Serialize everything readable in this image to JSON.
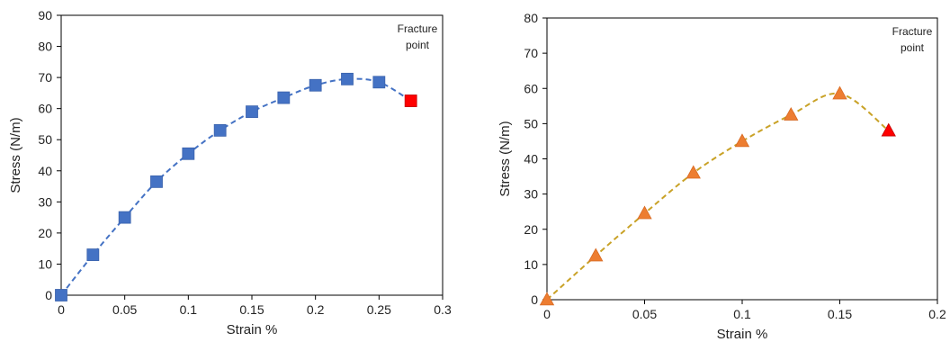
{
  "chart_data": [
    {
      "type": "line",
      "xlabel": "Strain %",
      "ylabel": "Stress (N/m)",
      "xlim": [
        0,
        0.3
      ],
      "ylim": [
        0,
        90
      ],
      "x_ticks": [
        "0",
        "0.05",
        "0.1",
        "0.15",
        "0.2",
        "0.25",
        "0.3"
      ],
      "y_ticks": [
        "0",
        "10",
        "20",
        "30",
        "40",
        "50",
        "60",
        "70",
        "80",
        "90"
      ],
      "annotation": [
        "Fracture",
        "point"
      ],
      "marker": "square",
      "line_style": "dashed",
      "series": [
        {
          "x": [
            0,
            0.025,
            0.05,
            0.075,
            0.1,
            0.125,
            0.15,
            0.175,
            0.2,
            0.225,
            0.25,
            0.275
          ],
          "y": [
            0,
            13,
            25,
            36.5,
            45.5,
            53,
            59,
            63.5,
            67.5,
            69.5,
            68.5,
            62.5
          ],
          "color": "#4472C4",
          "highlight_last_color": "#FF0000"
        }
      ]
    },
    {
      "type": "line",
      "xlabel": "Strain %",
      "ylabel": "Stress (N/m)",
      "xlim": [
        0,
        0.2
      ],
      "ylim": [
        0,
        80
      ],
      "x_ticks": [
        "0",
        "0.05",
        "0.1",
        "0.15",
        "0.2"
      ],
      "y_ticks": [
        "0",
        "10",
        "20",
        "30",
        "40",
        "50",
        "60",
        "70",
        "80"
      ],
      "annotation": [
        "Fracture",
        "point"
      ],
      "marker": "triangle",
      "line_style": "dashed",
      "series": [
        {
          "x": [
            0,
            0.025,
            0.05,
            0.075,
            0.1,
            0.125,
            0.15,
            0.175
          ],
          "y": [
            0,
            12.5,
            24.5,
            36,
            45,
            52.5,
            58.5,
            48
          ],
          "color": "#ED7D31",
          "line_color": "#C9A227",
          "highlight_last_color": "#FF0000"
        }
      ]
    }
  ]
}
